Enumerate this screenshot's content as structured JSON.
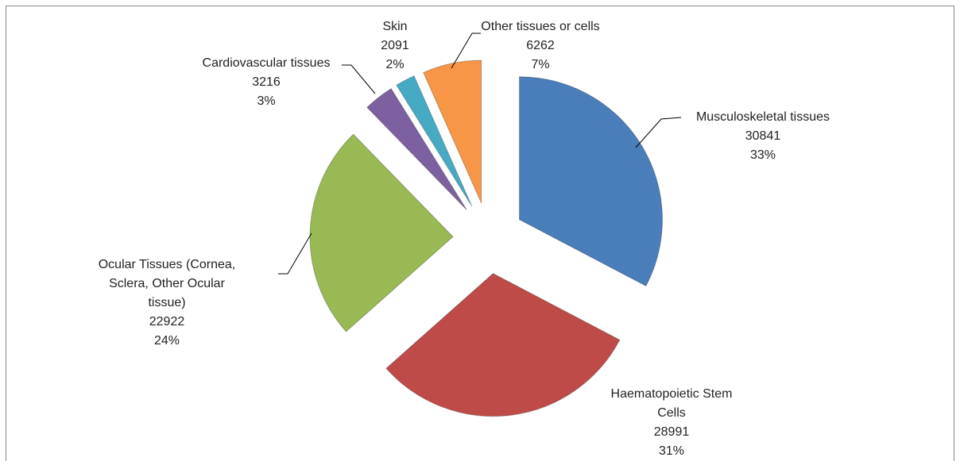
{
  "chart_data": {
    "type": "pie",
    "categories": [
      "Musculoskeletal tissues",
      "Haematopoietic Stem Cells",
      "Ocular Tissues (Cornea, Sclera, Other Ocular tissue)",
      "Cardiovascular tissues",
      "Skin",
      "Other tissues or cells"
    ],
    "values": [
      30841,
      28991,
      22922,
      3216,
      2091,
      6262
    ],
    "percent_labels": [
      "33%",
      "31%",
      "24%",
      "3%",
      "2%",
      "7%"
    ],
    "colors": [
      "#4a7ebb",
      "#be4b48",
      "#98b954",
      "#7d60a0",
      "#46aac5",
      "#f79646"
    ]
  }
}
